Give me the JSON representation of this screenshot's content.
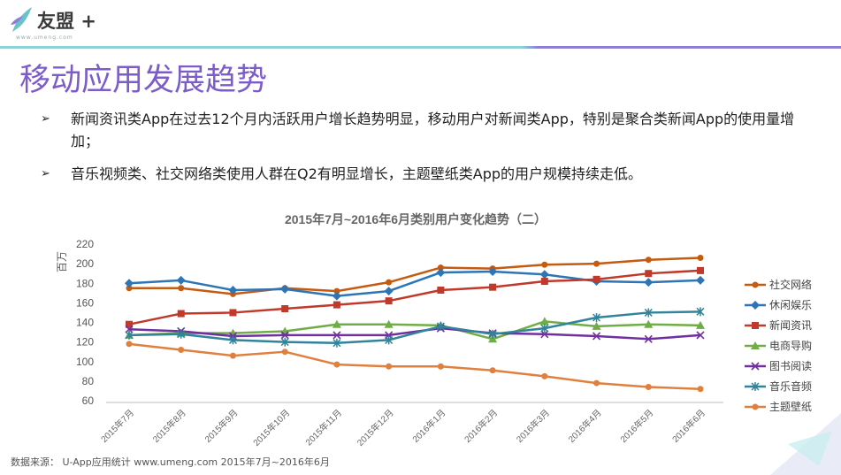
{
  "brand": {
    "name": "友盟",
    "plus": "+",
    "url": "www.umeng.com"
  },
  "page_title": "移动应用发展趋势",
  "bullets": [
    "新闻资讯类App在过去12个月内活跃用户增长趋势明显，移动用户对新闻类App，特别是聚合类新闻App的使用量增加；",
    "音乐视频类、社交网络类使用人群在Q2有明显增长，主题壁纸类App的用户规模持续走低。"
  ],
  "bullet_icon": "arrow-right-icon",
  "footer": {
    "source": "数据来源： U-App应用统计 www.umeng.com 2015年7月~2016年6月"
  },
  "chart_data": {
    "type": "line",
    "title": "2015年7月~2016年6月类别用户变化趋势（二）",
    "ylabel": "百万",
    "xlabel": "",
    "ylim": [
      60,
      220
    ],
    "yticks": [
      60,
      80,
      100,
      120,
      140,
      160,
      180,
      200,
      220
    ],
    "categories": [
      "2015年7月",
      "2015年8月",
      "2015年9月",
      "2015年10月",
      "2015年11月",
      "2015年12月",
      "2016年1月",
      "2016年2月",
      "2016年3月",
      "2016年4月",
      "2016年5月",
      "2016年6月"
    ],
    "legend_position": "right",
    "grid": false,
    "series": [
      {
        "name": "社交网络",
        "color": "#c55a11",
        "marker": "circle",
        "values": [
          175,
          175,
          169,
          175,
          172,
          181,
          196,
          195,
          199,
          200,
          204,
          206
        ]
      },
      {
        "name": "休闲娱乐",
        "color": "#2e75b6",
        "marker": "diamond",
        "values": [
          180,
          183,
          173,
          174,
          167,
          172,
          191,
          192,
          189,
          182,
          181,
          183
        ]
      },
      {
        "name": "新闻资讯",
        "color": "#c0392b",
        "marker": "square",
        "values": [
          138,
          149,
          150,
          154,
          158,
          162,
          173,
          176,
          182,
          184,
          190,
          193
        ]
      },
      {
        "name": "电商导购",
        "color": "#70ad47",
        "marker": "triangle",
        "values": [
          127,
          129,
          129,
          131,
          138,
          138,
          137,
          123,
          141,
          136,
          138,
          137
        ]
      },
      {
        "name": "图书阅读",
        "color": "#7030a0",
        "marker": "x",
        "values": [
          133,
          131,
          126,
          127,
          127,
          127,
          134,
          129,
          128,
          126,
          123,
          127
        ]
      },
      {
        "name": "音乐音频",
        "color": "#31849b",
        "marker": "star",
        "values": [
          127,
          128,
          122,
          120,
          119,
          122,
          136,
          128,
          134,
          145,
          150,
          151
        ]
      },
      {
        "name": "主题壁纸",
        "color": "#e0803f",
        "marker": "circle",
        "values": [
          118,
          112,
          106,
          110,
          97,
          95,
          95,
          91,
          85,
          78,
          74,
          72
        ]
      }
    ]
  }
}
